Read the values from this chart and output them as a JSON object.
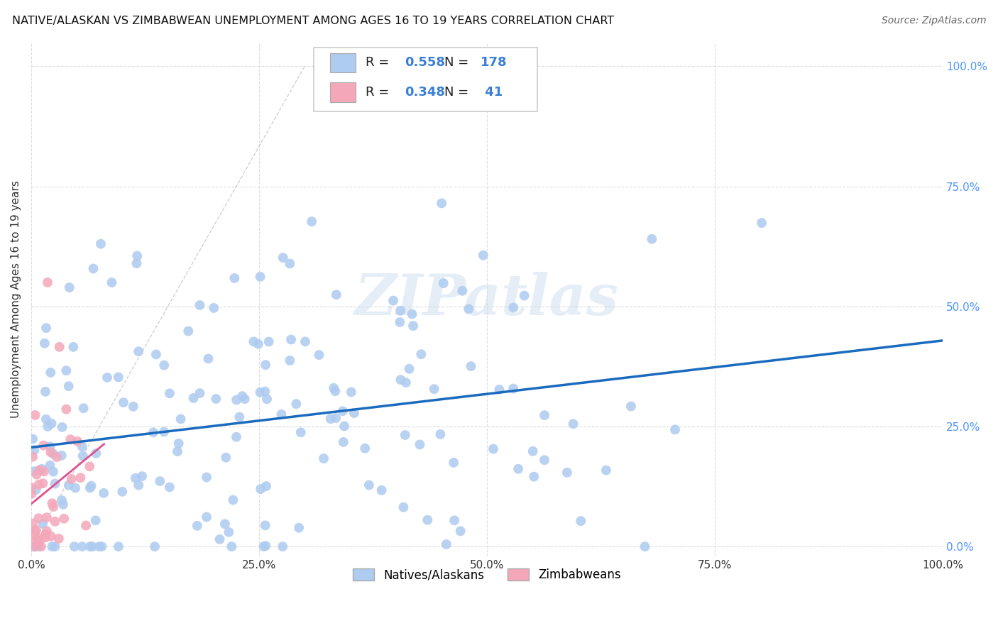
{
  "title": "NATIVE/ALASKAN VS ZIMBABWEAN UNEMPLOYMENT AMONG AGES 16 TO 19 YEARS CORRELATION CHART",
  "source": "Source: ZipAtlas.com",
  "ylabel": "Unemployment Among Ages 16 to 19 years",
  "xlim": [
    0,
    1.0
  ],
  "ylim": [
    -0.02,
    1.05
  ],
  "native_color": "#aecbf0",
  "zimbabwean_color": "#f4a7b9",
  "native_R": 0.558,
  "native_N": 178,
  "zimbabwean_R": 0.348,
  "zimbabwean_N": 41,
  "regression_line_color": "#1a6bbf",
  "regression_line_pink": "#e05090",
  "watermark": "ZIPatlas",
  "background_color": "#ffffff",
  "grid_color": "#dddddd",
  "legend_label_native": "Natives/Alaskans",
  "legend_label_zimbabwean": "Zimbabweans",
  "ytick_color": "#4d94ff",
  "xtick_color": "#333333"
}
